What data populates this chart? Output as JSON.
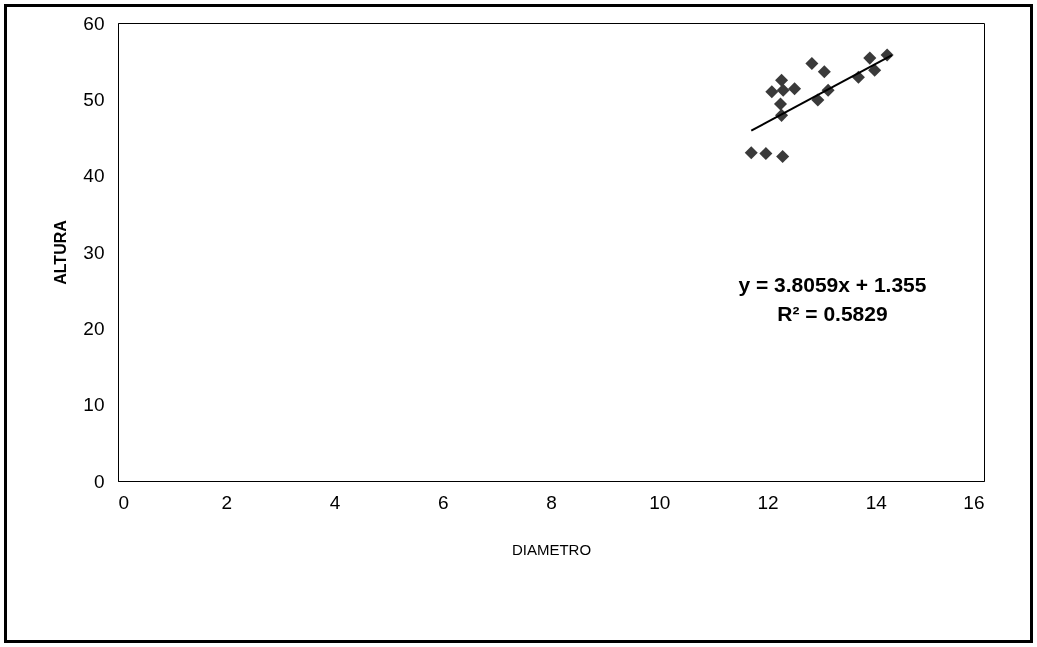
{
  "chart_data": {
    "type": "scatter",
    "xlabel": "DIAMETRO",
    "ylabel": "ALTURA",
    "xlim": [
      0,
      16
    ],
    "ylim": [
      0,
      60
    ],
    "xticks": [
      0,
      2,
      4,
      6,
      8,
      10,
      12,
      14,
      16
    ],
    "yticks": [
      0,
      10,
      20,
      30,
      40,
      50,
      60
    ],
    "grid": false,
    "series": [
      {
        "color": "#3a3a3a",
        "marker": "diamond",
        "x": [
          11.7,
          11.97,
          12.28,
          12.08,
          12.26,
          12.29,
          12.5,
          12.24,
          12.26,
          12.82,
          13.05,
          13.12,
          12.93,
          13.68,
          13.98,
          13.89,
          14.21
        ],
        "values": [
          43.0,
          42.9,
          42.5,
          51.0,
          52.5,
          51.2,
          51.4,
          49.4,
          47.9,
          54.7,
          53.6,
          51.2,
          49.9,
          52.9,
          53.8,
          55.4,
          55.8
        ]
      },
      {
        "type": "line",
        "color": "#000000",
        "x": [
          11.7,
          14.3
        ],
        "values": [
          45.9,
          55.8
        ]
      }
    ],
    "annotations": [
      "y = 3.8059x + 1.355",
      "R² = 0.5829"
    ]
  }
}
